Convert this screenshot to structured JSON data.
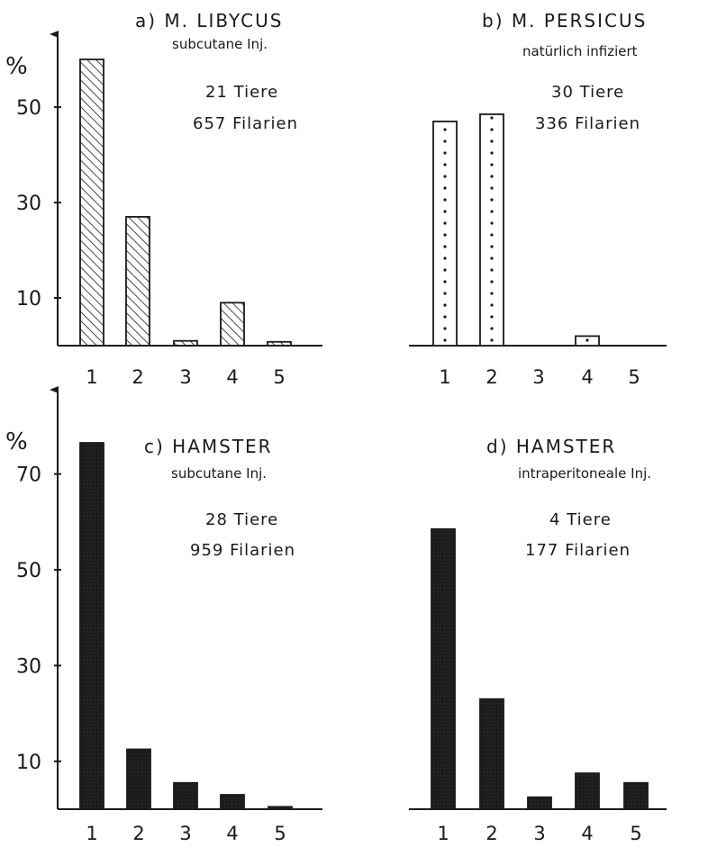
{
  "chart_data": [
    {
      "id": "a",
      "type": "bar",
      "title": "a) M. LIBYCUS",
      "subtitle": "subcutane Inj.",
      "animals": "21 Tiere",
      "filariae": "657 Filarien",
      "ylabel": "%",
      "yticks": [
        10,
        30,
        50
      ],
      "ylim": [
        0,
        62
      ],
      "categories": [
        "1",
        "2",
        "3",
        "4",
        "5"
      ],
      "values": [
        60,
        27,
        1,
        9,
        0.8
      ],
      "fill": "hatched"
    },
    {
      "id": "b",
      "type": "bar",
      "title": "b) M. PERSICUS",
      "subtitle": "natürlich infiziert",
      "animals": "30 Tiere",
      "filariae": "336 Filarien",
      "ylabel": "",
      "yticks": [],
      "ylim": [
        0,
        62
      ],
      "categories": [
        "1",
        "2",
        "3",
        "4",
        "5"
      ],
      "values": [
        47,
        48.5,
        0,
        2,
        0
      ],
      "fill": "dotted"
    },
    {
      "id": "c",
      "type": "bar",
      "title": "c) HAMSTER",
      "subtitle": "subcutane Inj.",
      "animals": "28 Tiere",
      "filariae": "959 Filarien",
      "ylabel": "%",
      "yticks": [
        10,
        30,
        50,
        70
      ],
      "ylim": [
        0,
        82
      ],
      "categories": [
        "1",
        "2",
        "3",
        "4",
        "5"
      ],
      "values": [
        76.5,
        12.5,
        5.5,
        3,
        0.5
      ],
      "fill": "solid"
    },
    {
      "id": "d",
      "type": "bar",
      "title": "d) HAMSTER",
      "subtitle": "intraperitoneale Inj.",
      "animals": "4 Tiere",
      "filariae": "177 Filarien",
      "ylabel": "",
      "yticks": [],
      "ylim": [
        0,
        82
      ],
      "categories": [
        "1",
        "2",
        "3",
        "4",
        "5"
      ],
      "values": [
        58.5,
        23,
        2.5,
        7.5,
        5.5
      ],
      "fill": "solid"
    }
  ]
}
